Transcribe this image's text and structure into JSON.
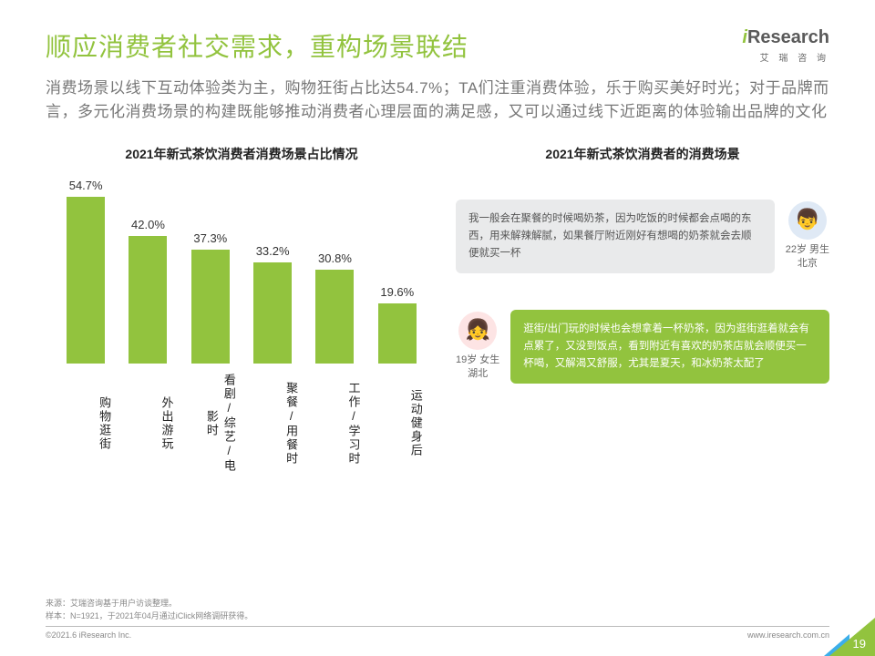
{
  "colors": {
    "accent": "#92c33e",
    "accent_dark": "#6fa02c",
    "page_tri": "#92c33e"
  },
  "logo": {
    "text": "iResearch",
    "sub": "艾 瑞 咨 询",
    "i_color": "#92c33e",
    "rest_color": "#5a5a5a"
  },
  "title": "顺应消费者社交需求，重构场景联结",
  "subtitle": "消费场景以线下互动体验类为主，购物狂街占比达54.7%；TA们注重消费体验，乐于购买美好时光；对于品牌而言，多元化消费场景的构建既能够推动消费者心理层面的满足感，又可以通过线下近距离的体验输出品牌的文化",
  "chart": {
    "title": "2021年新式茶饮消费者消费场景占比情况",
    "type": "bar",
    "ymax": 60,
    "bar_color": "#92c33e",
    "value_fontsize": 13,
    "label_fontsize": 13,
    "categories": [
      "购物逛街",
      "外出游玩",
      "看剧/综艺/电影时",
      "聚餐/用餐时",
      "工作/学习时",
      "运动健身后"
    ],
    "values": [
      54.7,
      42.0,
      37.3,
      33.2,
      30.8,
      19.6
    ],
    "value_labels": [
      "54.7%",
      "42.0%",
      "37.3%",
      "33.2%",
      "30.8%",
      "19.6%"
    ]
  },
  "right_title": "2021年新式茶饮消费者的消费场景",
  "quotes": [
    {
      "text": "我一般会在聚餐的时候喝奶茶，因为吃饭的时候都会点喝的东西，用来解辣解腻，如果餐厅附近刚好有想喝的奶茶就会去顺便就买一杯",
      "persona_line1": "22岁 男生",
      "persona_line2": "北京",
      "style": "gray",
      "avatar": "m",
      "avatar_emoji": "👦",
      "side": "right"
    },
    {
      "text": "逛街/出门玩的时候也会想拿着一杯奶茶，因为逛街逛着就会有点累了，又没到饭点，看到附近有喜欢的奶茶店就会顺便买一杯喝，又解渴又舒服，尤其是夏天，和冰奶茶太配了",
      "persona_line1": "19岁 女生",
      "persona_line2": "湖北",
      "style": "grn",
      "avatar": "f",
      "avatar_emoji": "👧",
      "side": "left"
    }
  ],
  "footer": {
    "source1": "来源：艾瑞咨询基于用户访谈整理。",
    "source2": "样本：N=1921，于2021年04月通过iClick网络调研获得。",
    "copyright": "©2021.6 iResearch Inc.",
    "website": "www.iresearch.com.cn",
    "page": "19"
  }
}
